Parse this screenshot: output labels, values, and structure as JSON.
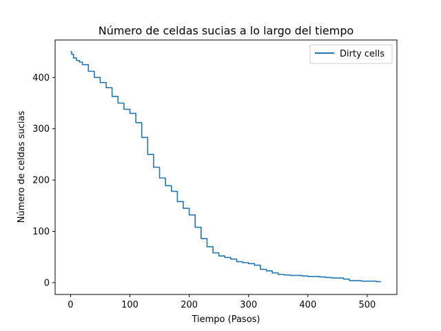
{
  "chart_data": {
    "type": "line",
    "title": "Número de celdas sucias a lo largo del tiempo",
    "xlabel": "Tiempo (Pasos)",
    "ylabel": "Número de celdas sucias",
    "xlim": [
      -26,
      550
    ],
    "ylim": [
      -23,
      473
    ],
    "xticks": [
      0,
      100,
      200,
      300,
      400,
      500
    ],
    "yticks": [
      0,
      100,
      200,
      300,
      400
    ],
    "grid": false,
    "legend_position": "top-right",
    "series": [
      {
        "name": "Dirty cells",
        "color": "#1f77b4",
        "x": [
          0,
          2,
          5,
          10,
          15,
          20,
          30,
          40,
          50,
          60,
          70,
          80,
          90,
          100,
          110,
          120,
          130,
          140,
          150,
          160,
          170,
          180,
          190,
          200,
          210,
          220,
          230,
          240,
          250,
          260,
          270,
          280,
          290,
          300,
          310,
          320,
          330,
          340,
          350,
          360,
          370,
          380,
          390,
          400,
          410,
          420,
          430,
          440,
          450,
          460,
          470,
          480,
          490,
          500,
          510,
          515,
          520,
          523
        ],
        "y": [
          450,
          445,
          438,
          433,
          430,
          425,
          412,
          400,
          390,
          380,
          363,
          350,
          338,
          330,
          312,
          283,
          250,
          225,
          204,
          189,
          178,
          158,
          145,
          132,
          108,
          86,
          70,
          58,
          52,
          49,
          46,
          41,
          39,
          37,
          34,
          26,
          23,
          19,
          16,
          15,
          14,
          14,
          13,
          12,
          12,
          11,
          10,
          9,
          9,
          7,
          4,
          4,
          3,
          3,
          3,
          2,
          2,
          2
        ]
      }
    ]
  }
}
